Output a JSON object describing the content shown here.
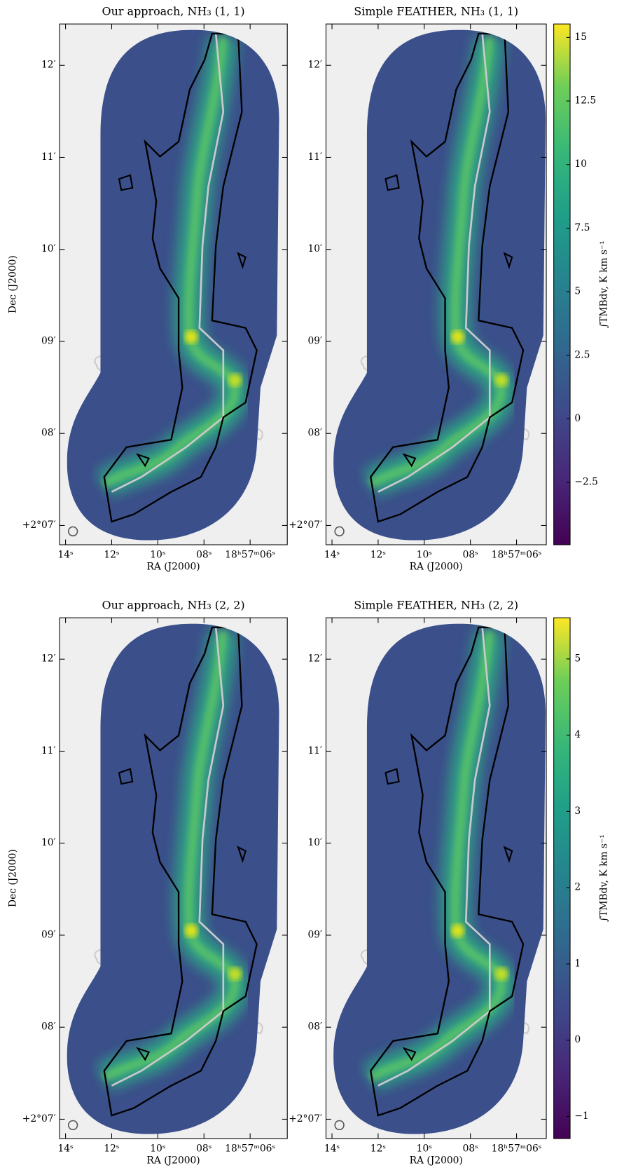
{
  "chart_data": [
    {
      "type": "image",
      "title": "Our approach, NH₃ (1, 1)",
      "xlabel": "RA (J2000)",
      "ylabel": "Dec (J2000)",
      "xlim": [
        14.26,
        4.39
      ],
      "ylim": [
        6.79,
        12.45
      ],
      "xticks": [
        {
          "value": 14,
          "label": "14ˢ"
        },
        {
          "value": 12,
          "label": "12ˢ"
        },
        {
          "value": 10,
          "label": "10ˢ"
        },
        {
          "value": 8,
          "label": "08ˢ"
        },
        {
          "value": 6,
          "label": "18ʰ57ᵐ06ˢ"
        }
      ],
      "yticks": [
        {
          "value": 12,
          "label": "12′"
        },
        {
          "value": 11,
          "label": "11′"
        },
        {
          "value": 10,
          "label": "10′"
        },
        {
          "value": 9,
          "label": "09′"
        },
        {
          "value": 8,
          "label": "08′"
        },
        {
          "value": 7,
          "label": "+2°07′"
        }
      ],
      "colormap": "viridis"
    },
    {
      "type": "image",
      "title": "Simple FEATHER, NH₃ (1, 1)",
      "xlabel": "RA (J2000)",
      "xlim": [
        14.26,
        4.71
      ],
      "ylim": [
        6.79,
        12.45
      ],
      "xticks": [
        {
          "value": 14,
          "label": "14ˢ"
        },
        {
          "value": 12,
          "label": "12ˢ"
        },
        {
          "value": 10,
          "label": "10ˢ"
        },
        {
          "value": 8,
          "label": "08ˢ"
        },
        {
          "value": 6,
          "label": "18ʰ57ᵐ06ˢ"
        }
      ],
      "yticks": [
        {
          "value": 12,
          "label": "12′"
        },
        {
          "value": 11,
          "label": "11′"
        },
        {
          "value": 10,
          "label": "10′"
        },
        {
          "value": 9,
          "label": "09′"
        },
        {
          "value": 8,
          "label": "08′"
        },
        {
          "value": 7,
          "label": "+2°07′"
        }
      ],
      "colormap": "viridis",
      "colorbar": {
        "label": "∫TMBdv, K km s⁻¹",
        "clim": [
          -4.95,
          15.53
        ],
        "ticks": [
          15,
          12.5,
          10,
          7.5,
          5,
          2.5,
          0,
          -2.5
        ]
      }
    },
    {
      "type": "image",
      "title": "Our approach, NH₃ (2, 2)",
      "xlabel": "RA (J2000)",
      "ylabel": "Dec (J2000)",
      "xlim": [
        14.26,
        4.39
      ],
      "ylim": [
        6.79,
        12.45
      ],
      "xticks": [
        {
          "value": 14,
          "label": "14ˢ"
        },
        {
          "value": 12,
          "label": "12ˢ"
        },
        {
          "value": 10,
          "label": "10ˢ"
        },
        {
          "value": 8,
          "label": "08ˢ"
        },
        {
          "value": 6,
          "label": "18ʰ57ᵐ06ˢ"
        }
      ],
      "yticks": [
        {
          "value": 12,
          "label": "12′"
        },
        {
          "value": 11,
          "label": "11′"
        },
        {
          "value": 10,
          "label": "10′"
        },
        {
          "value": 9,
          "label": "09′"
        },
        {
          "value": 8,
          "label": "08′"
        },
        {
          "value": 7,
          "label": "+2°07′"
        }
      ],
      "colormap": "viridis"
    },
    {
      "type": "image",
      "title": "Simple FEATHER, NH₃ (2, 2)",
      "xlabel": "RA (J2000)",
      "xlim": [
        14.26,
        4.71
      ],
      "ylim": [
        6.79,
        12.45
      ],
      "xticks": [
        {
          "value": 14,
          "label": "14ˢ"
        },
        {
          "value": 12,
          "label": "12ˢ"
        },
        {
          "value": 10,
          "label": "10ˢ"
        },
        {
          "value": 8,
          "label": "08ˢ"
        },
        {
          "value": 6,
          "label": "18ʰ57ᵐ06ˢ"
        }
      ],
      "yticks": [
        {
          "value": 12,
          "label": "12′"
        },
        {
          "value": 11,
          "label": "11′"
        },
        {
          "value": 10,
          "label": "10′"
        },
        {
          "value": 9,
          "label": "09′"
        },
        {
          "value": 8,
          "label": "08′"
        },
        {
          "value": 7,
          "label": "+2°07′"
        }
      ],
      "colormap": "viridis",
      "colorbar": {
        "label": "∫TMBdv, K km s⁻¹",
        "clim": [
          -1.29,
          5.54
        ],
        "ticks": [
          5,
          4,
          3,
          2,
          1,
          0,
          -1
        ]
      }
    }
  ]
}
